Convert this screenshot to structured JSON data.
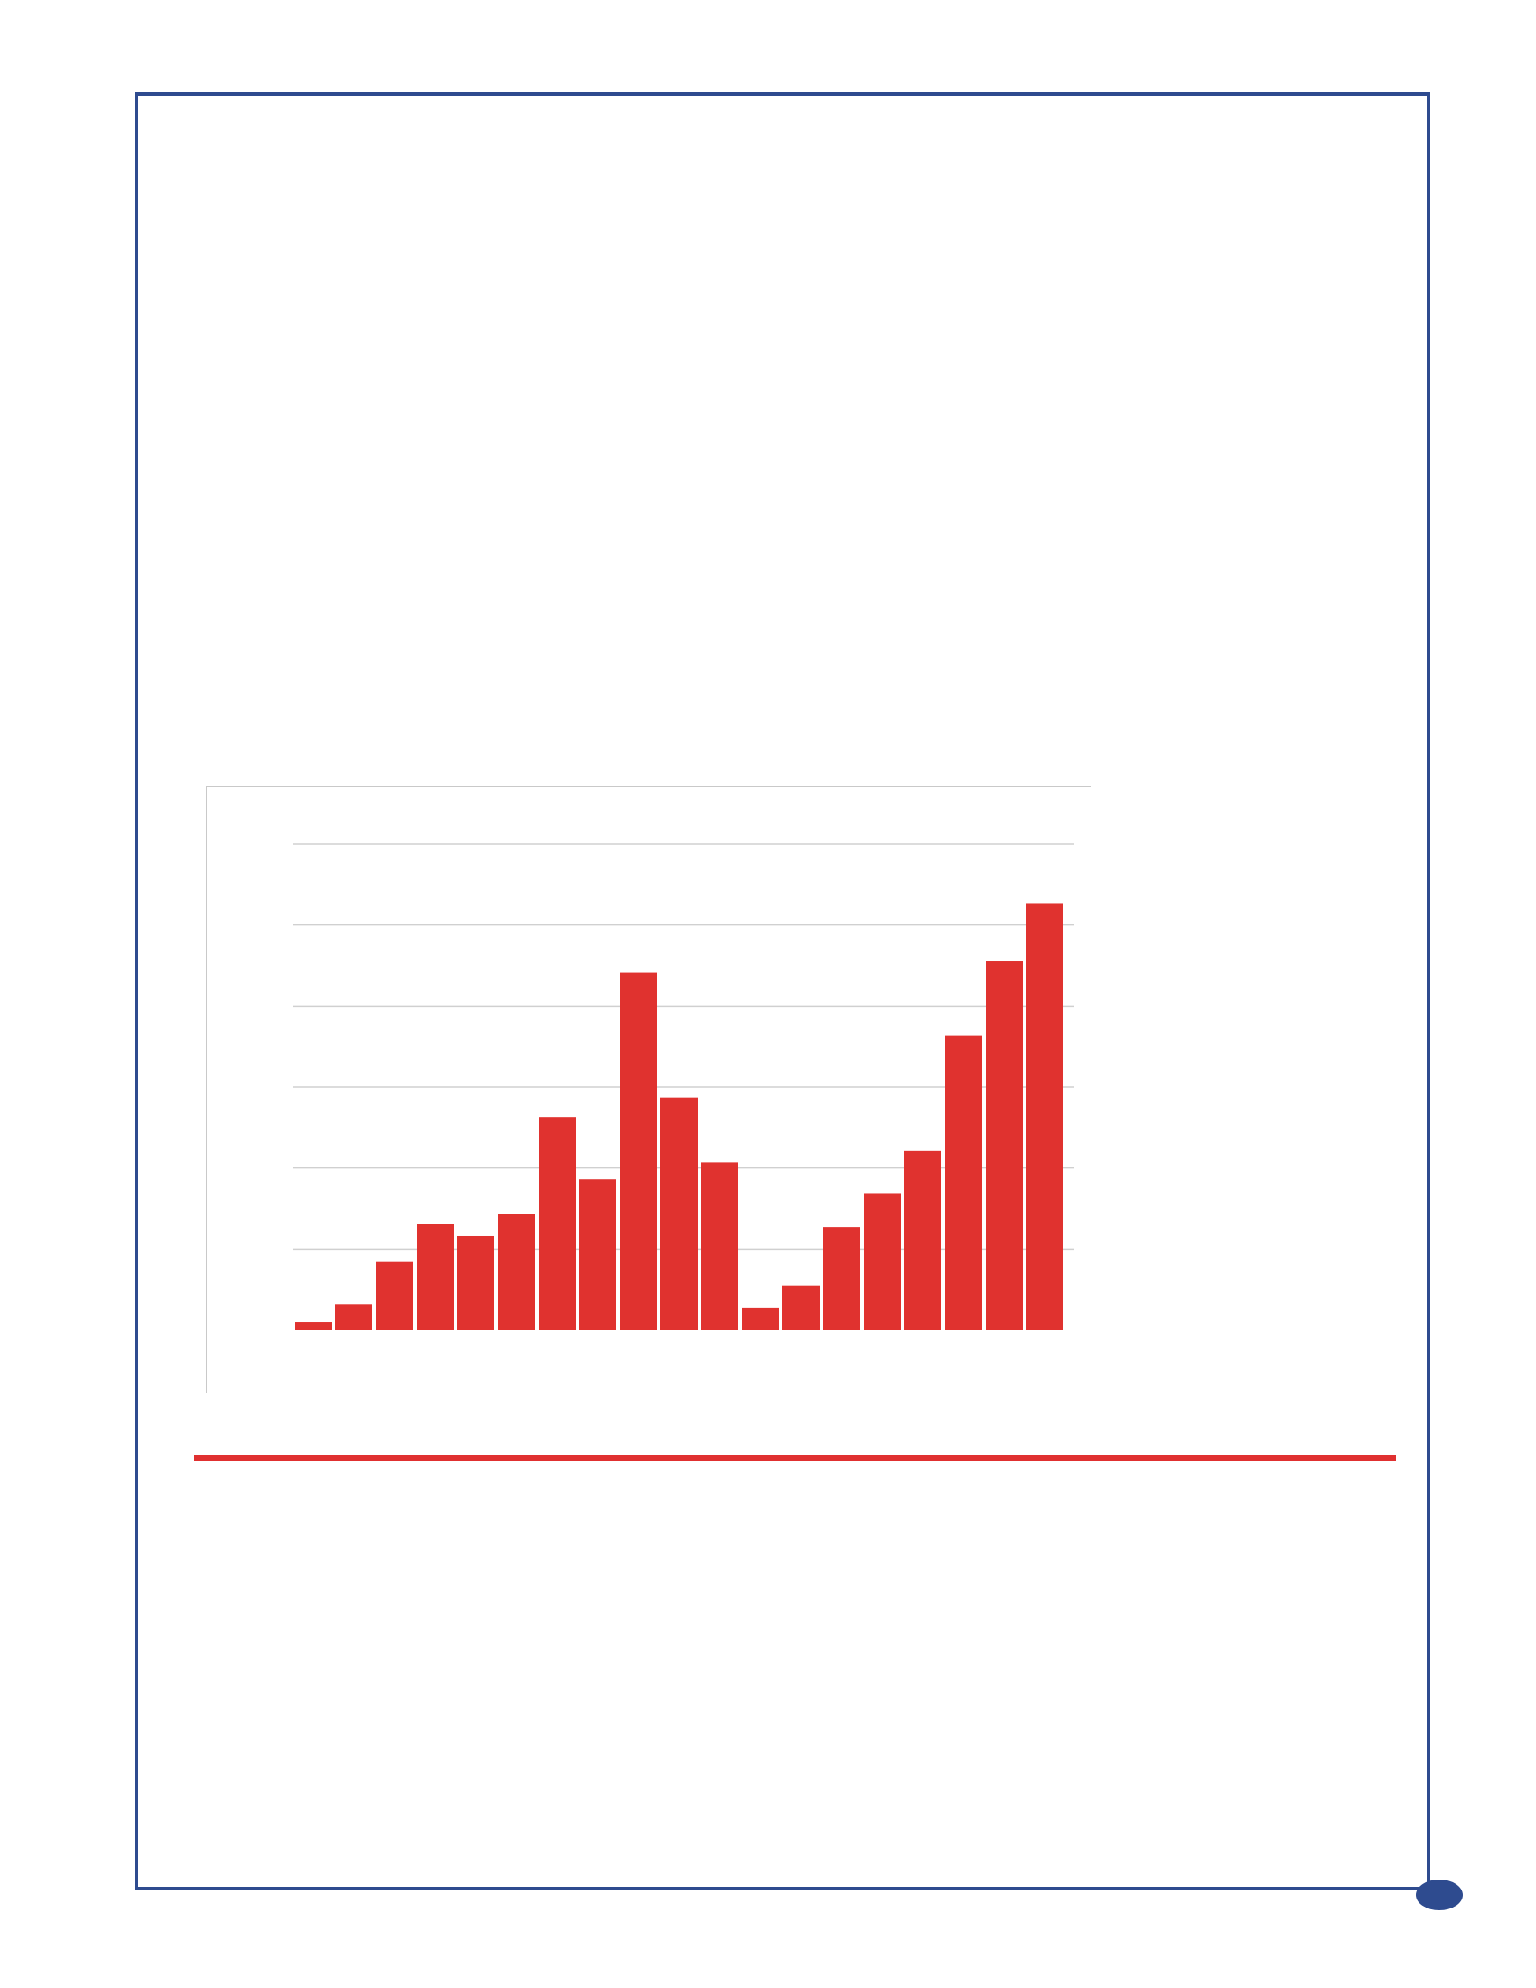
{
  "colors": {
    "frame": "#2E4B8F",
    "bar": "#E0322F",
    "rule": "#E03030",
    "gridline": "#D0D0D0",
    "chart_border": "#C9C9C9"
  },
  "chart_data": {
    "type": "bar",
    "title": "",
    "xlabel": "",
    "ylabel": "",
    "ylim": [
      0,
      6
    ],
    "grid": true,
    "legend": "none",
    "series": [
      {
        "values": [
          0.1,
          0.32,
          0.84,
          1.31,
          1.16,
          1.43,
          2.63,
          1.86,
          4.41,
          2.87,
          2.07,
          0.28,
          0.55,
          1.27,
          1.69,
          2.21,
          3.64,
          4.55,
          5.27
        ]
      }
    ]
  },
  "page_marker": {
    "icon": "page-number-dot"
  }
}
